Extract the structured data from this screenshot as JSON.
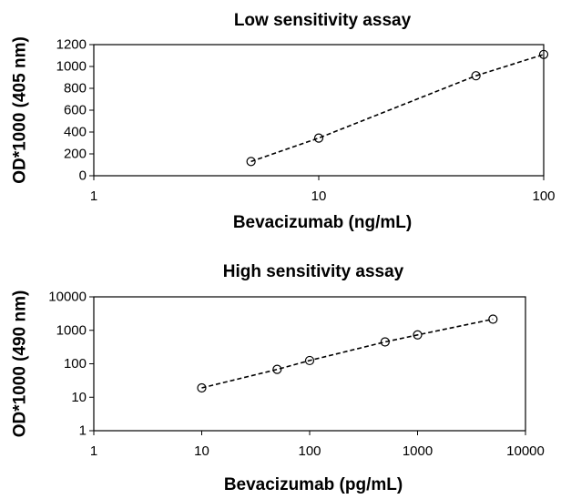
{
  "chart_data": [
    {
      "type": "scatter",
      "title": "Low sensitivity assay",
      "xlabel": "Bevacizumab (ng/mL)",
      "ylabel": "OD*1000  (405 nm)",
      "xscale": "log",
      "yscale": "linear",
      "xlim": [
        1,
        100
      ],
      "ylim": [
        0,
        1200
      ],
      "xticks": [
        "1",
        "10",
        "100"
      ],
      "yticks": [
        "0",
        "200",
        "400",
        "600",
        "800",
        "1000",
        "1200"
      ],
      "grid": false,
      "legend": "none",
      "marker": "open-circle",
      "trendline": "dashed",
      "series": [
        {
          "x": [
            5,
            10,
            50,
            100
          ],
          "y": [
            130,
            345,
            915,
            1110
          ]
        }
      ]
    },
    {
      "type": "scatter",
      "title": "High sensitivity assay",
      "xlabel": "Bevacizumab (pg/mL)",
      "ylabel": "OD*1000 (490 nm)",
      "xscale": "log",
      "yscale": "log",
      "xlim": [
        1,
        10000
      ],
      "ylim": [
        1,
        10000
      ],
      "xticks": [
        "1",
        "10",
        "100",
        "1000",
        "10000"
      ],
      "yticks": [
        "1",
        "10",
        "100",
        "1000",
        "10000"
      ],
      "grid": false,
      "legend": "none",
      "marker": "open-circle",
      "trendline": "dashed",
      "series": [
        {
          "x": [
            10,
            50,
            100,
            500,
            1000,
            5000
          ],
          "y": [
            19,
            68,
            125,
            450,
            730,
            2150
          ]
        }
      ]
    }
  ]
}
